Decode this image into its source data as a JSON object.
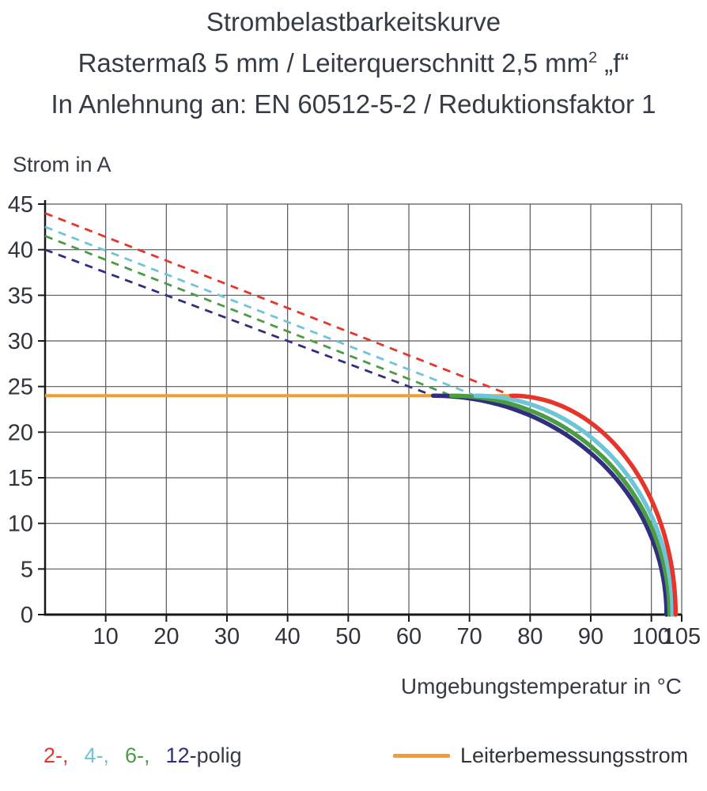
{
  "title": {
    "line1": "Strombelastbarkeitskurve",
    "line2_pre": "Rastermaß 5 mm / Leiterquerschnitt 2,5 mm",
    "line2_sup": "2",
    "line2_post": " „f“",
    "line3": "In Anlehnung an: EN 60512-5-2 / Reduktionsfaktor 1"
  },
  "axes": {
    "y_label": "Strom in A",
    "x_label": "Umgebungstemperatur in °C"
  },
  "legend": {
    "items": [
      {
        "label": "2-,",
        "color": "#E6352B"
      },
      {
        "label": "4-,",
        "color": "#6FC5D8"
      },
      {
        "label": "6-,",
        "color": "#4C9C44"
      },
      {
        "label": "12-",
        "color": "#2F2E7F"
      }
    ],
    "suffix": "polig",
    "rated_label": "Leiterbemessungsstrom",
    "rated_color": "#F59C2F"
  },
  "chart_data": {
    "type": "line",
    "title": "Strombelastbarkeitskurve",
    "subtitle": [
      "Rastermaß 5 mm / Leiterquerschnitt 2,5 mm² „f“",
      "In Anlehnung an: EN 60512-5-2 / Reduktionsfaktor 1"
    ],
    "xlabel": "Umgebungstemperatur in °C",
    "ylabel": "Strom in A",
    "xlim": [
      0,
      105
    ],
    "ylim": [
      0,
      45
    ],
    "x_ticks": [
      10,
      20,
      30,
      40,
      50,
      60,
      70,
      80,
      90,
      100,
      105
    ],
    "y_ticks": [
      0,
      5,
      10,
      15,
      20,
      25,
      30,
      35,
      40,
      45
    ],
    "grid": true,
    "legend_position": "bottom",
    "rated_current": {
      "label": "Leiterbemessungsstrom",
      "value": 24,
      "temp_start": 0,
      "temp_end": 77,
      "color": "#F59C2F"
    },
    "series": [
      {
        "name": "12-polig",
        "color": "#2F2E7F",
        "line_style": "dashed-then-solid",
        "derating_line": {
          "current_at_0C": 40.0,
          "reaches_cap_at": 64
        },
        "cap_current": 24,
        "zero_current_temp": 102.5
      },
      {
        "name": "6-polig",
        "color": "#4C9C44",
        "line_style": "dashed-then-solid",
        "derating_line": {
          "current_at_0C": 41.5,
          "reaches_cap_at": 67
        },
        "cap_current": 24,
        "zero_current_temp": 103
      },
      {
        "name": "4-polig",
        "color": "#6FC5D8",
        "line_style": "dashed-then-solid",
        "derating_line": {
          "current_at_0C": 42.5,
          "reaches_cap_at": 71
        },
        "cap_current": 24,
        "zero_current_temp": 103.5
      },
      {
        "name": "2-polig",
        "color": "#E6352B",
        "line_style": "dashed-then-solid",
        "derating_line": {
          "current_at_0C": 44.0,
          "reaches_cap_at": 77
        },
        "cap_current": 24,
        "zero_current_temp": 104
      }
    ]
  }
}
